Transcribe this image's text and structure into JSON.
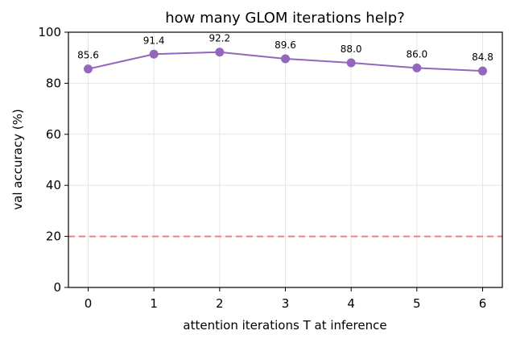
{
  "chart_data": {
    "type": "line",
    "title": "how many GLOM iterations help?",
    "xlabel": "attention iterations T at inference",
    "ylabel": "val accuracy (%)",
    "x": [
      0,
      1,
      2,
      3,
      4,
      5,
      6
    ],
    "xlim": [
      -0.3,
      6.3
    ],
    "ylim": [
      0,
      100
    ],
    "xticks": [
      0,
      1,
      2,
      3,
      4,
      5,
      6
    ],
    "yticks": [
      0,
      20,
      40,
      60,
      80,
      100
    ],
    "grid": true,
    "series": [
      {
        "values": [
          85.6,
          91.4,
          92.2,
          89.6,
          88.0,
          86.0,
          84.8
        ],
        "labels": [
          "85.6",
          "91.4",
          "92.2",
          "89.6",
          "88.0",
          "86.0",
          "84.8"
        ],
        "color": "#9467bd"
      }
    ],
    "reference_line": {
      "y": 20,
      "color": "#f08080",
      "style": "dashed"
    }
  }
}
